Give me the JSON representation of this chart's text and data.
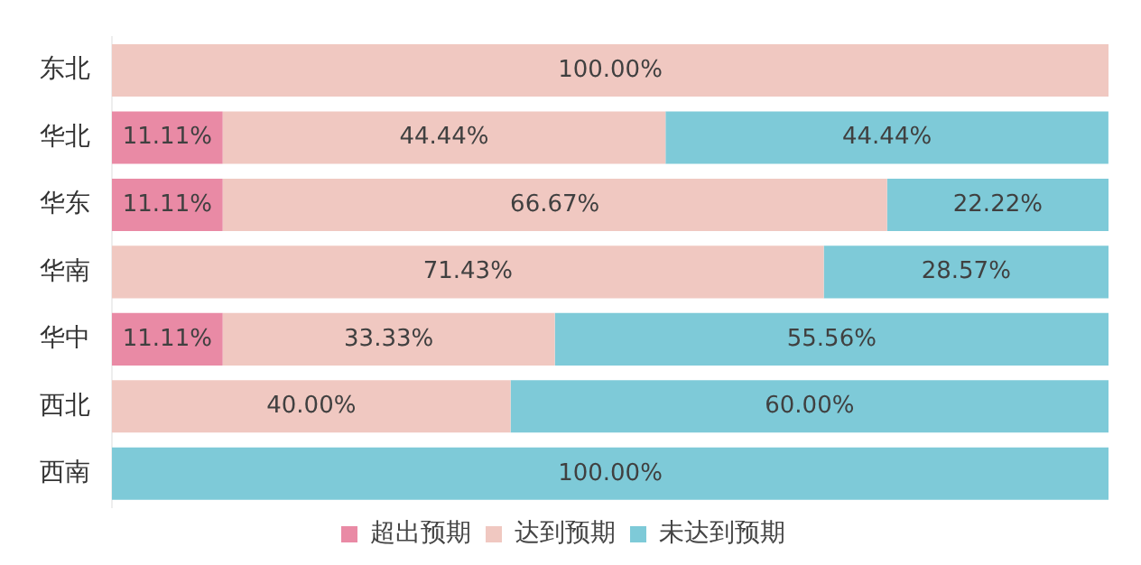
{
  "chart_data": {
    "type": "bar",
    "orientation": "horizontal",
    "stacked": true,
    "categories": [
      "东北",
      "华北",
      "华东",
      "华南",
      "华中",
      "西北",
      "西南"
    ],
    "xlim": [
      0,
      100
    ],
    "series": [
      {
        "name": "超出预期",
        "color": "#e98aa5",
        "values": [
          null,
          11.11,
          11.11,
          null,
          11.11,
          null,
          null
        ],
        "value_labels": [
          null,
          "11.11%",
          "11.11%",
          null,
          "11.11%",
          null,
          null
        ]
      },
      {
        "name": "达到预期",
        "color": "#f0c8c1",
        "values": [
          100,
          44.44,
          66.67,
          71.43,
          33.33,
          40,
          null
        ],
        "value_labels": [
          "100.00%",
          "44.44%",
          "66.67%",
          "71.43%",
          "33.33%",
          "40.00%",
          null
        ]
      },
      {
        "name": "未达到预期",
        "color": "#7ecad8",
        "values": [
          null,
          44.44,
          22.22,
          28.57,
          55.56,
          60,
          100
        ],
        "value_labels": [
          null,
          "44.44%",
          "22.22%",
          "28.57%",
          "55.56%",
          "60.00%",
          "100.00%"
        ]
      }
    ],
    "legend": "bottom",
    "tick_labels": "y"
  }
}
